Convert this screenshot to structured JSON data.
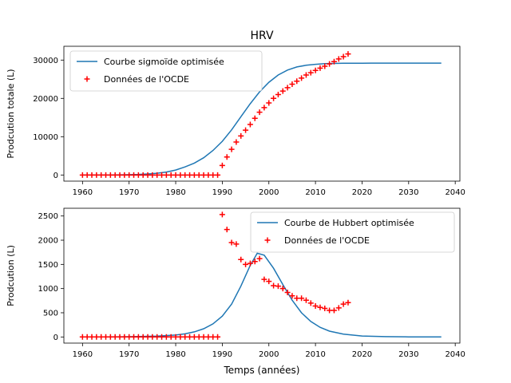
{
  "figure_title": "HRV",
  "chart_data": [
    {
      "type": "line",
      "ylabel": "Prodcution totale (L)",
      "xlabel": "",
      "xlim": [
        1956,
        2041
      ],
      "ylim": [
        -1600,
        33600
      ],
      "xticks": [
        1960,
        1970,
        1980,
        1990,
        2000,
        2010,
        2020,
        2030,
        2040
      ],
      "yticks": [
        0,
        10000,
        20000,
        30000
      ],
      "legend_position": "top-left",
      "series": [
        {
          "name": "Courbe sigmoïde optimisée",
          "kind": "line",
          "color": "#1f77b4",
          "x": [
            1960,
            1962,
            1964,
            1966,
            1968,
            1970,
            1972,
            1974,
            1976,
            1978,
            1980,
            1982,
            1984,
            1986,
            1988,
            1990,
            1992,
            1994,
            1996,
            1998,
            2000,
            2002,
            2004,
            2006,
            2008,
            2010,
            2012,
            2014,
            2016,
            2018,
            2020,
            2022,
            2024,
            2026,
            2028,
            2030,
            2032,
            2034,
            2037
          ],
          "y": [
            6,
            10,
            17,
            30,
            52,
            91,
            160,
            270,
            460,
            780,
            1300,
            2100,
            3100,
            4500,
            6400,
            8800,
            11800,
            15200,
            18600,
            21700,
            24200,
            26100,
            27400,
            28200,
            28650,
            28900,
            29050,
            29120,
            29160,
            29180,
            29190,
            29195,
            29200,
            29200,
            29200,
            29200,
            29200,
            29200,
            29200
          ]
        },
        {
          "name": "Données de l'OCDE",
          "kind": "scatter",
          "marker": "+",
          "color": "#ff0000",
          "x": [
            1960,
            1961,
            1962,
            1963,
            1964,
            1965,
            1966,
            1967,
            1968,
            1969,
            1970,
            1971,
            1972,
            1973,
            1974,
            1975,
            1976,
            1977,
            1978,
            1979,
            1980,
            1981,
            1982,
            1983,
            1984,
            1985,
            1986,
            1987,
            1988,
            1989,
            1990,
            1991,
            1992,
            1993,
            1994,
            1995,
            1996,
            1997,
            1998,
            1999,
            2000,
            2001,
            2002,
            2003,
            2004,
            2005,
            2006,
            2007,
            2008,
            2009,
            2010,
            2011,
            2012,
            2013,
            2014,
            2015,
            2016,
            2017
          ],
          "y": [
            0,
            0,
            0,
            0,
            0,
            0,
            0,
            0,
            0,
            0,
            0,
            0,
            0,
            0,
            0,
            0,
            0,
            0,
            0,
            0,
            0,
            0,
            0,
            0,
            0,
            0,
            0,
            0,
            0,
            0,
            2500,
            4700,
            6700,
            8600,
            10200,
            11700,
            13200,
            14800,
            16400,
            17600,
            18800,
            20000,
            21000,
            21900,
            22800,
            23700,
            24500,
            25300,
            26100,
            26700,
            27300,
            27900,
            28400,
            29000,
            29600,
            30300,
            30900,
            31600
          ]
        }
      ]
    },
    {
      "type": "line",
      "ylabel": "Prodcution (L)",
      "xlabel": "Temps (années)",
      "xlim": [
        1956,
        2041
      ],
      "ylim": [
        -127,
        2660
      ],
      "xticks": [
        1960,
        1970,
        1980,
        1990,
        2000,
        2010,
        2020,
        2030,
        2040
      ],
      "yticks": [
        0,
        500,
        1000,
        1500,
        2000,
        2500
      ],
      "legend_position": "top-right",
      "series": [
        {
          "name": "Courbe de Hubbert optimisée",
          "kind": "line",
          "color": "#1f77b4",
          "x": [
            1960,
            1964,
            1968,
            1972,
            1976,
            1980,
            1982,
            1984,
            1986,
            1988,
            1990,
            1992,
            1994,
            1996,
            1997.5,
            1999,
            2001,
            2003,
            2005,
            2007,
            2009,
            2011,
            2013,
            2016,
            2020,
            2025,
            2030,
            2037
          ],
          "y": [
            1,
            2,
            4,
            8,
            17,
            40,
            65,
            105,
            170,
            270,
            430,
            680,
            1050,
            1480,
            1730,
            1690,
            1420,
            1080,
            760,
            500,
            320,
            200,
            120,
            60,
            20,
            6,
            2,
            1
          ]
        },
        {
          "name": "Données de l'OCDE",
          "kind": "scatter",
          "marker": "+",
          "color": "#ff0000",
          "x": [
            1960,
            1961,
            1962,
            1963,
            1964,
            1965,
            1966,
            1967,
            1968,
            1969,
            1970,
            1971,
            1972,
            1973,
            1974,
            1975,
            1976,
            1977,
            1978,
            1979,
            1980,
            1981,
            1982,
            1983,
            1984,
            1985,
            1986,
            1987,
            1988,
            1989,
            1990,
            1991,
            1992,
            1993,
            1994,
            1995,
            1996,
            1997,
            1998,
            1999,
            2000,
            2001,
            2002,
            2003,
            2004,
            2005,
            2006,
            2007,
            2008,
            2009,
            2010,
            2011,
            2012,
            2013,
            2014,
            2015,
            2016,
            2017
          ],
          "y": [
            0,
            0,
            0,
            0,
            0,
            0,
            0,
            0,
            0,
            0,
            0,
            0,
            0,
            0,
            0,
            0,
            0,
            0,
            0,
            0,
            0,
            0,
            0,
            0,
            0,
            0,
            0,
            0,
            0,
            0,
            2530,
            2220,
            1950,
            1920,
            1600,
            1500,
            1520,
            1560,
            1620,
            1190,
            1150,
            1060,
            1050,
            1000,
            920,
            850,
            800,
            800,
            760,
            700,
            640,
            610,
            590,
            550,
            550,
            600,
            680,
            710
          ]
        }
      ]
    }
  ]
}
